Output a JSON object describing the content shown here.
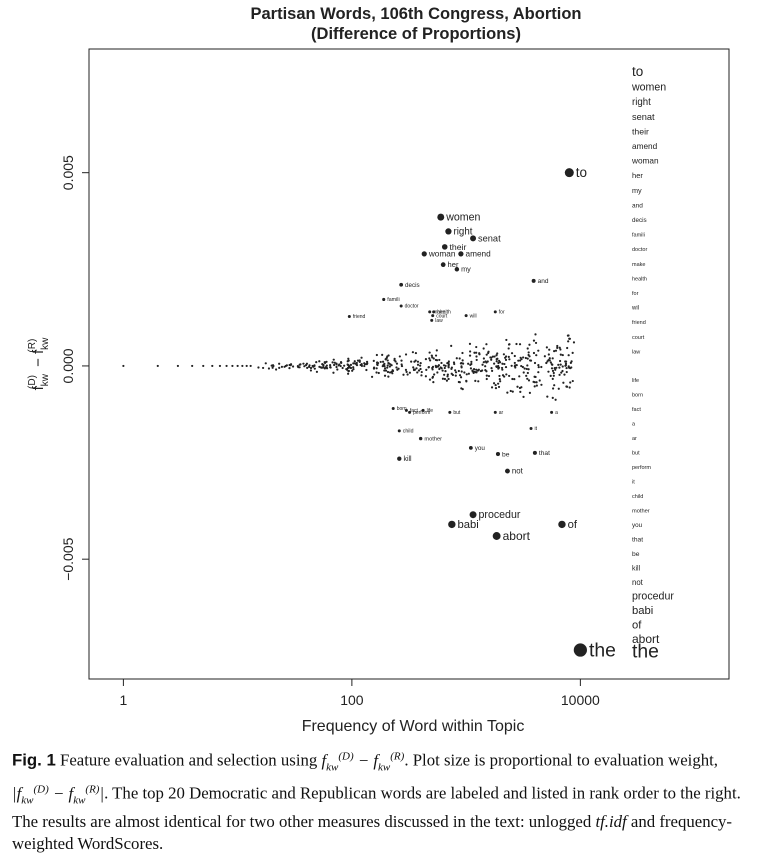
{
  "chart_data": {
    "type": "scatter",
    "title": [
      "Partisan Words, 106th Congress, Abortion",
      "(Difference of Proportions)"
    ],
    "xlabel": "Frequency of Word within Topic",
    "ylabel": "f(D)kw − f(R)kw",
    "x_scale": "log10",
    "xlim": [
      0.5,
      200000
    ],
    "ylim": [
      -0.0081,
      0.0082
    ],
    "x_ticks": [
      1,
      100,
      10000
    ],
    "x_tick_labels": [
      "1",
      "100",
      "10000"
    ],
    "y_ticks": [
      -0.005,
      0.0,
      0.005
    ],
    "y_tick_labels": [
      "−0.005",
      "0.000",
      "0.005"
    ],
    "labeled_points": [
      {
        "word": "to",
        "x": 8000,
        "y": 0.005
      },
      {
        "word": "women",
        "x": 600,
        "y": 0.00385
      },
      {
        "word": "right",
        "x": 700,
        "y": 0.00348
      },
      {
        "word": "senat",
        "x": 1150,
        "y": 0.0033
      },
      {
        "word": "their",
        "x": 650,
        "y": 0.00308
      },
      {
        "word": "woman",
        "x": 430,
        "y": 0.0029
      },
      {
        "word": "amend",
        "x": 900,
        "y": 0.0029
      },
      {
        "word": "her",
        "x": 630,
        "y": 0.00262
      },
      {
        "word": "my",
        "x": 830,
        "y": 0.0025
      },
      {
        "word": "and",
        "x": 3900,
        "y": 0.0022
      },
      {
        "word": "decis",
        "x": 270,
        "y": 0.0021
      },
      {
        "word": "famili",
        "x": 190,
        "y": 0.00172
      },
      {
        "word": "doctor",
        "x": 270,
        "y": 0.00155
      },
      {
        "word": "make",
        "x": 480,
        "y": 0.0014
      },
      {
        "word": "health",
        "x": 520,
        "y": 0.0014
      },
      {
        "word": "court",
        "x": 510,
        "y": 0.0013
      },
      {
        "word": "law",
        "x": 500,
        "y": 0.00118
      },
      {
        "word": "for",
        "x": 1800,
        "y": 0.0014
      },
      {
        "word": "will",
        "x": 1000,
        "y": 0.0013
      },
      {
        "word": "friend",
        "x": 95,
        "y": 0.00128
      },
      {
        "word": "life",
        "x": 420,
        "y": -0.00115
      },
      {
        "word": "born",
        "x": 230,
        "y": -0.0011
      },
      {
        "word": "fact",
        "x": 300,
        "y": -0.00115
      },
      {
        "word": "perform",
        "x": 320,
        "y": -0.0012
      },
      {
        "word": "but",
        "x": 720,
        "y": -0.0012
      },
      {
        "word": "ar",
        "x": 1800,
        "y": -0.0012
      },
      {
        "word": "a",
        "x": 5600,
        "y": -0.0012
      },
      {
        "word": "it",
        "x": 3700,
        "y": -0.00162
      },
      {
        "word": "child",
        "x": 260,
        "y": -0.00168
      },
      {
        "word": "mother",
        "x": 400,
        "y": -0.00188
      },
      {
        "word": "you",
        "x": 1100,
        "y": -0.00212
      },
      {
        "word": "be",
        "x": 1900,
        "y": -0.00228
      },
      {
        "word": "that",
        "x": 4000,
        "y": -0.00225
      },
      {
        "word": "kill",
        "x": 260,
        "y": -0.0024
      },
      {
        "word": "not",
        "x": 2300,
        "y": -0.00272
      },
      {
        "word": "procedur",
        "x": 1150,
        "y": -0.00385
      },
      {
        "word": "babi",
        "x": 750,
        "y": -0.0041
      },
      {
        "word": "of",
        "x": 6900,
        "y": -0.0041
      },
      {
        "word": "abort",
        "x": 1850,
        "y": -0.0044
      },
      {
        "word": "the",
        "x": 10000,
        "y": -0.00735
      }
    ],
    "rank_list_dem": [
      "to",
      "women",
      "right",
      "senat",
      "their",
      "amend",
      "woman",
      "her",
      "my",
      "and",
      "decis",
      "famili",
      "doctor",
      "make",
      "health",
      "for",
      "wil",
      "friend",
      "court",
      "law"
    ],
    "rank_list_rep": [
      "life",
      "born",
      "fact",
      "a",
      "ar",
      "but",
      "perform",
      "it",
      "child",
      "mother",
      "you",
      "that",
      "be",
      "kill",
      "not",
      "procedur",
      "babi",
      "of",
      "abort",
      "the"
    ]
  },
  "caption": {
    "label": "Fig. 1",
    "part1": " Feature evaluation and selection using ",
    "formula_inline": "f(D)kw − f(R)kw",
    "part2": ". Plot size is proportional to evaluation weight, ",
    "formula_abs": "|f(D)kw − f(R)kw|",
    "part3": ". The top 20 Democratic and Republican words are labeled and listed in rank order to the right. The results are almost identical for two other measures discussed in the text: unlogged ",
    "tfidf": "tf.idf",
    "part4": " and frequency-weighted WordScores."
  }
}
